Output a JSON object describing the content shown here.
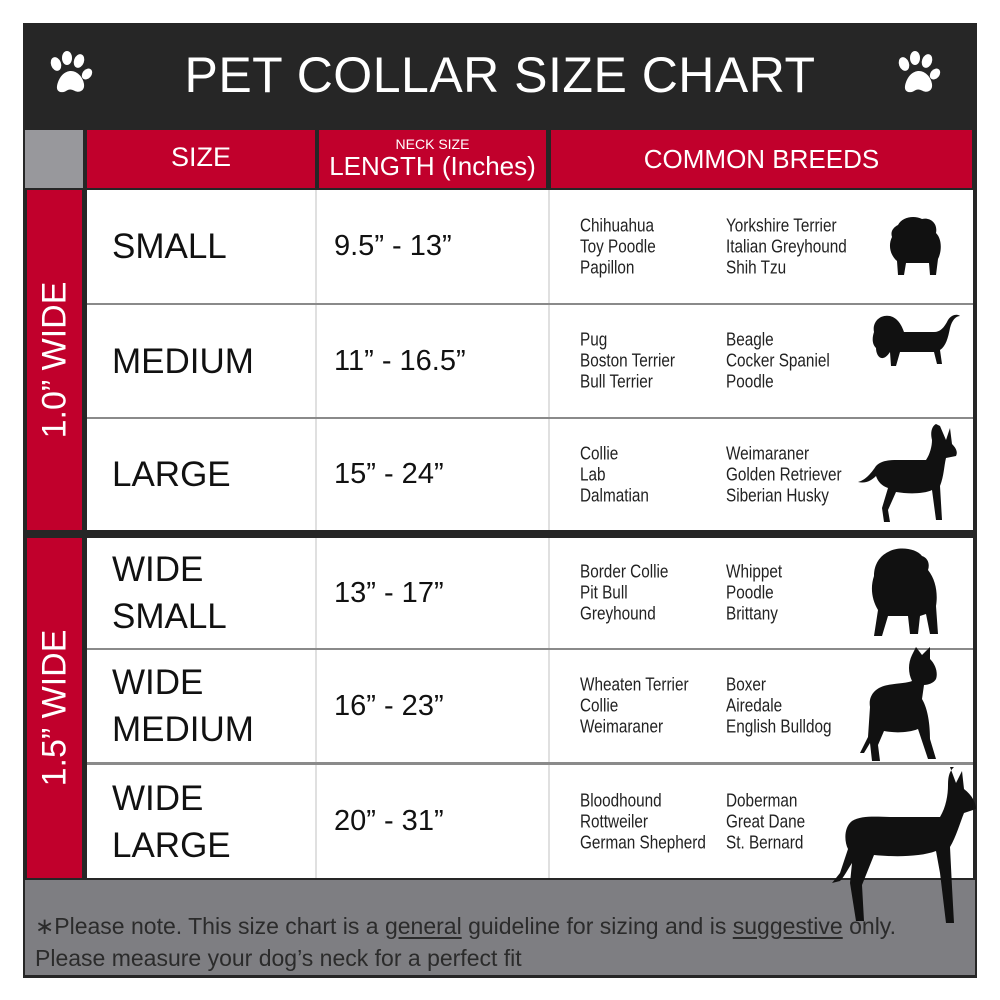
{
  "title": "PET COLLAR SIZE CHART",
  "header": {
    "size": "SIZE",
    "neck_size": "NECK SIZE",
    "length": "LENGTH (Inches)",
    "breeds": "COMMON BREEDS"
  },
  "groups": [
    {
      "label": "1.0” WIDE"
    },
    {
      "label": "1.5” WIDE"
    }
  ],
  "rows": [
    {
      "size": "SMALL",
      "length": "9.5” - 13”",
      "breeds_a": [
        "Chihuahua",
        "Toy Poodle",
        "Papillon"
      ],
      "breeds_b": [
        "Yorkshire Terrier",
        "Italian Greyhound",
        "Shih Tzu"
      ],
      "icon": "small-dog-silhouette-icon"
    },
    {
      "size": "MEDIUM",
      "length": "11” - 16.5”",
      "breeds_a": [
        "Pug",
        "Boston Terrier",
        "Bull Terrier"
      ],
      "breeds_b": [
        "Beagle",
        "Cocker Spaniel",
        "Poodle"
      ],
      "icon": "medium-dog-silhouette-icon"
    },
    {
      "size": "LARGE",
      "length": "15” - 24”",
      "breeds_a": [
        "Collie",
        "Lab",
        "Dalmatian"
      ],
      "breeds_b": [
        "Weimaraner",
        "Golden Retriever",
        "Siberian Husky"
      ],
      "icon": "large-dog-silhouette-icon"
    },
    {
      "size": "WIDE SMALL",
      "length": "13” - 17”",
      "breeds_a": [
        "Border Collie",
        "Pit Bull",
        "Greyhound"
      ],
      "breeds_b": [
        "Whippet",
        "Poodle",
        "Brittany"
      ],
      "icon": "bulldog-silhouette-icon"
    },
    {
      "size": "WIDE MEDIUM",
      "length": "16” - 23”",
      "breeds_a": [
        "Wheaten Terrier",
        "Collie",
        "Weimaraner"
      ],
      "breeds_b": [
        "Boxer",
        "Airedale",
        "English Bulldog"
      ],
      "icon": "pitbull-silhouette-icon"
    },
    {
      "size": "WIDE LARGE",
      "length": "20” - 31”",
      "breeds_a": [
        "Bloodhound",
        "Rottweiler",
        "German Shepherd"
      ],
      "breeds_b": [
        "Doberman",
        "Great Dane",
        "St. Bernard"
      ],
      "icon": "doberman-silhouette-icon"
    }
  ],
  "footer": {
    "p1": "∗Please note. This size chart is a ",
    "u1": "general",
    "p2": " guideline for sizing and is ",
    "u2": "suggestive",
    "p3": " only.",
    "line2": "Please measure your dog’s neck for a perfect fit"
  },
  "colors": {
    "red": "#c1002c",
    "dark": "#262626",
    "gray": "#7e7e82"
  }
}
